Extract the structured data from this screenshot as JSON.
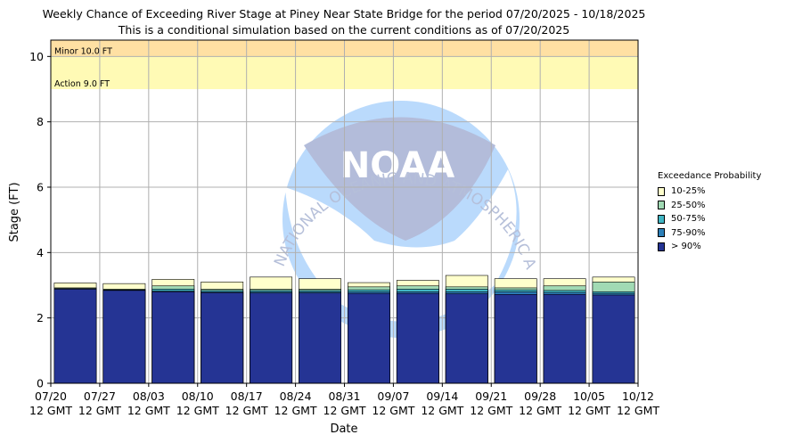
{
  "chart_data": {
    "type": "bar",
    "title": "Weekly Chance of Exceeding River Stage at Piney Near State Bridge for the period 07/20/2025 - 10/18/2025",
    "subtitle": "This is a conditional simulation based on the current conditions as of 07/20/2025",
    "xlabel": "Date",
    "ylabel": "Stage (FT)",
    "ylim": [
      0,
      10.5
    ],
    "yticks": [
      0,
      2,
      4,
      6,
      8,
      10
    ],
    "grid": true,
    "x_ticks": [
      {
        "date": "07/20",
        "time": "12 GMT"
      },
      {
        "date": "07/27",
        "time": "12 GMT"
      },
      {
        "date": "08/03",
        "time": "12 GMT"
      },
      {
        "date": "08/10",
        "time": "12 GMT"
      },
      {
        "date": "08/17",
        "time": "12 GMT"
      },
      {
        "date": "08/24",
        "time": "12 GMT"
      },
      {
        "date": "08/31",
        "time": "12 GMT"
      },
      {
        "date": "09/07",
        "time": "12 GMT"
      },
      {
        "date": "09/14",
        "time": "12 GMT"
      },
      {
        "date": "09/21",
        "time": "12 GMT"
      },
      {
        "date": "09/28",
        "time": "12 GMT"
      },
      {
        "date": "10/05",
        "time": "12 GMT"
      },
      {
        "date": "10/12",
        "time": "12 GMT"
      }
    ],
    "thresholds": [
      {
        "label": "Minor 10.0 FT",
        "value": 10.0,
        "color": "#ffe0a3"
      },
      {
        "label": "Action 9.0 FT",
        "value": 9.0,
        "color": "#fffab5"
      }
    ],
    "legend_title": "Exceedance Probability",
    "legend_position": "right",
    "series": [
      {
        "name": "10-25%",
        "color": "#ffffcc",
        "values": [
          3.07,
          3.05,
          3.18,
          3.1,
          3.25,
          3.2,
          3.08,
          3.15,
          3.3,
          3.2,
          3.2,
          3.25
        ]
      },
      {
        "name": "25-50%",
        "color": "#a1dab4",
        "values": [
          2.92,
          2.88,
          2.98,
          2.88,
          2.88,
          2.88,
          2.95,
          2.98,
          2.95,
          2.92,
          2.98,
          3.1
        ]
      },
      {
        "name": "50-75%",
        "color": "#41b6c4",
        "values": [
          2.9,
          2.86,
          2.88,
          2.84,
          2.84,
          2.84,
          2.86,
          2.88,
          2.88,
          2.86,
          2.84,
          2.8
        ]
      },
      {
        "name": "75-90%",
        "color": "#2c7fb8",
        "values": [
          2.89,
          2.85,
          2.82,
          2.8,
          2.8,
          2.8,
          2.8,
          2.8,
          2.8,
          2.8,
          2.78,
          2.75
        ]
      },
      {
        "name": "> 90%",
        "color": "#253494",
        "values": [
          2.88,
          2.84,
          2.8,
          2.77,
          2.76,
          2.76,
          2.75,
          2.75,
          2.74,
          2.72,
          2.72,
          2.7
        ]
      }
    ]
  },
  "watermark": {
    "text_top": "NATIONAL OCEANIC AND ATMOSPHERIC ADMINISTRATION",
    "logo_text": "NOAA"
  }
}
